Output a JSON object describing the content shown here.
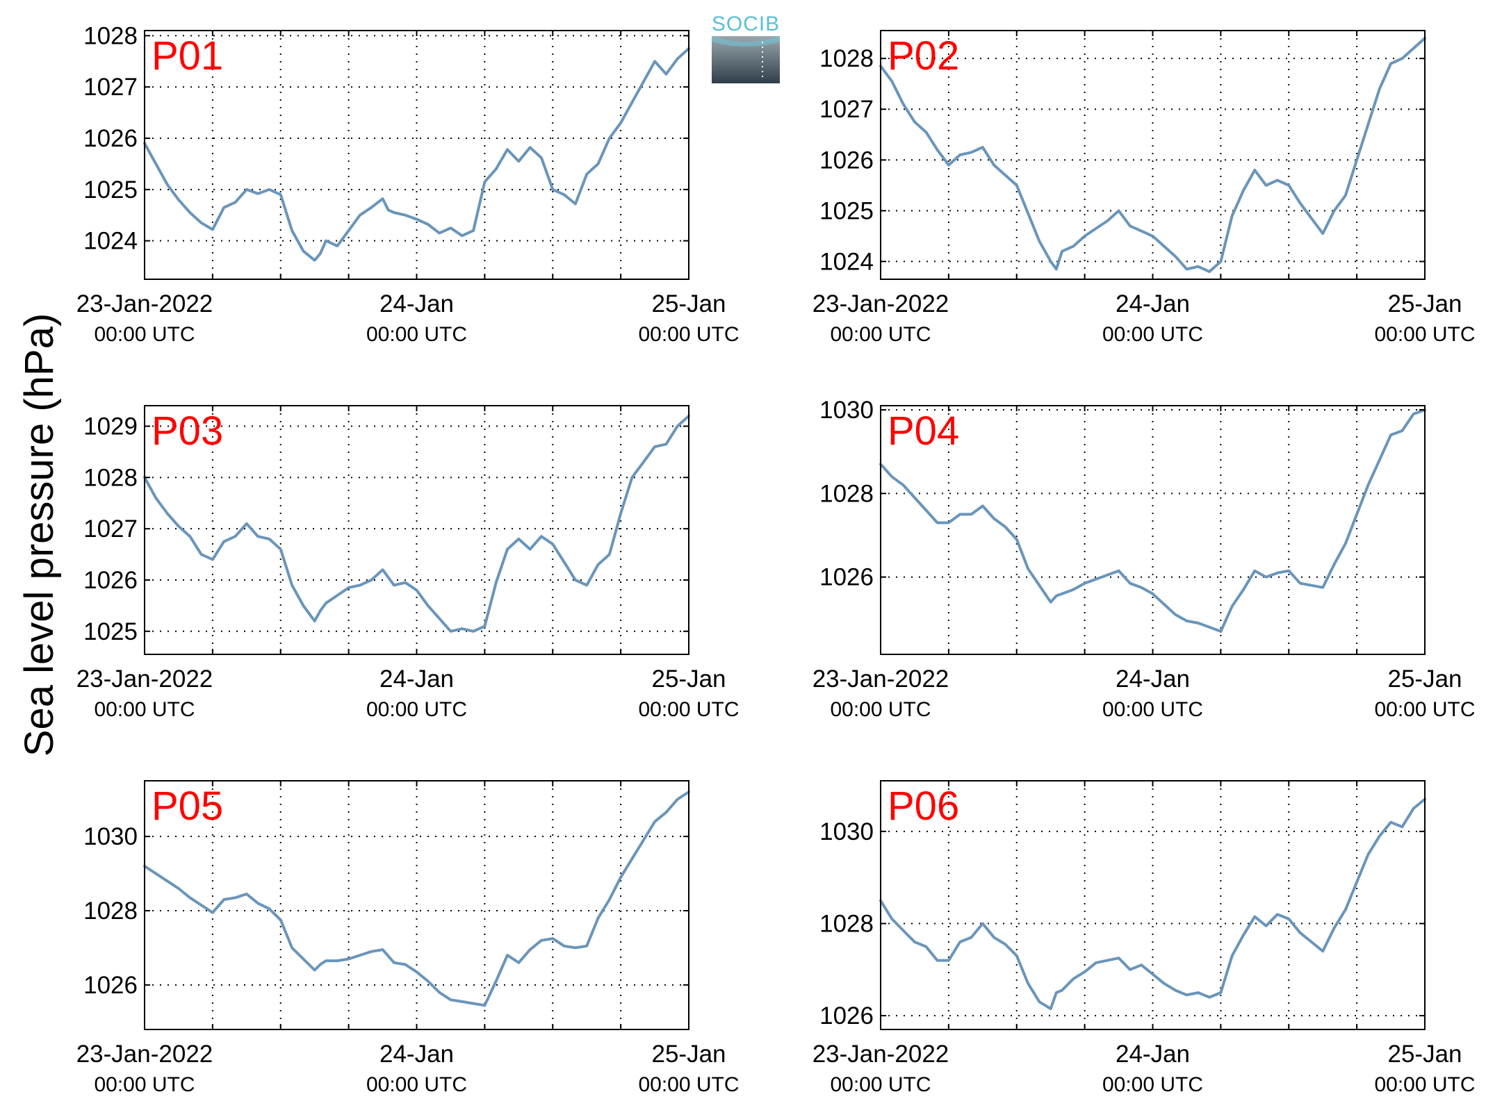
{
  "figure": {
    "ylabel": "Sea level pressure (hPa)",
    "logo_text": "SOCIB"
  },
  "colors": {
    "line": "#6a95ba",
    "panel_label": "#ff0000",
    "grid": "#000000",
    "logo_text": "#5bbfd3",
    "logo_top": "#9aa7ad",
    "logo_bottom": "#2f3e49"
  },
  "chart_data": [
    {
      "type": "line",
      "panel": "P01",
      "xlim": [
        0,
        48
      ],
      "ylim": [
        1023.25,
        1028.1
      ],
      "yticks": [
        1024,
        1025,
        1026,
        1027,
        1028
      ],
      "ytick_labels": [
        "1024",
        "1025",
        "1026",
        "1027",
        "1028"
      ],
      "xticks": [
        0,
        24,
        48
      ],
      "xtick_labels": [
        [
          "23-Jan-2022",
          "00:00 UTC"
        ],
        [
          "24-Jan",
          "00:00 UTC"
        ],
        [
          "25-Jan",
          "00:00 UTC"
        ]
      ],
      "grid": true,
      "series": [
        {
          "x": [
            0,
            1,
            2,
            3,
            4,
            5,
            6,
            7,
            8,
            9,
            10,
            11,
            12,
            13,
            14,
            15,
            15.5,
            16,
            17,
            18,
            19,
            20,
            21,
            21.5,
            22,
            23,
            24,
            25,
            26,
            27,
            28,
            29,
            30,
            31,
            32,
            33,
            34,
            35,
            36,
            37,
            38,
            39,
            40,
            41,
            42,
            43,
            44,
            45,
            46,
            47,
            48
          ],
          "y": [
            1025.9,
            1025.5,
            1025.1,
            1024.8,
            1024.55,
            1024.35,
            1024.22,
            1024.65,
            1024.75,
            1025.0,
            1024.92,
            1025.0,
            1024.9,
            1024.2,
            1023.8,
            1023.62,
            1023.75,
            1024.0,
            1023.9,
            1024.2,
            1024.5,
            1024.65,
            1024.82,
            1024.6,
            1024.55,
            1024.5,
            1024.42,
            1024.32,
            1024.15,
            1024.25,
            1024.1,
            1024.2,
            1025.15,
            1025.4,
            1025.78,
            1025.55,
            1025.82,
            1025.62,
            1025.0,
            1024.9,
            1024.72,
            1025.3,
            1025.5,
            1026.0,
            1026.3,
            1026.7,
            1027.1,
            1027.5,
            1027.25,
            1027.55,
            1027.75
          ]
        }
      ]
    },
    {
      "type": "line",
      "panel": "P02",
      "xlim": [
        0,
        48
      ],
      "ylim": [
        1023.65,
        1028.55
      ],
      "yticks": [
        1024,
        1025,
        1026,
        1027,
        1028
      ],
      "ytick_labels": [
        "1024",
        "1025",
        "1026",
        "1027",
        "1028"
      ],
      "xticks": [
        0,
        24,
        48
      ],
      "xtick_labels": [
        [
          "23-Jan-2022",
          "00:00 UTC"
        ],
        [
          "24-Jan",
          "00:00 UTC"
        ],
        [
          "25-Jan",
          "00:00 UTC"
        ]
      ],
      "grid": true,
      "series": [
        {
          "x": [
            0,
            1,
            2,
            3,
            4,
            5,
            6,
            7,
            8,
            9,
            10,
            11,
            12,
            13,
            14,
            15,
            15.5,
            16,
            17,
            18,
            19,
            20,
            21,
            22,
            23,
            24,
            25,
            26,
            27,
            28,
            29,
            30,
            31,
            32,
            33,
            34,
            35,
            36,
            37,
            38,
            39,
            40,
            41,
            42,
            43,
            44,
            45,
            46,
            47,
            48
          ],
          "y": [
            1027.85,
            1027.55,
            1027.1,
            1026.75,
            1026.55,
            1026.2,
            1025.9,
            1026.1,
            1026.15,
            1026.25,
            1025.9,
            1025.7,
            1025.5,
            1024.95,
            1024.4,
            1024.0,
            1023.85,
            1024.2,
            1024.3,
            1024.5,
            1024.65,
            1024.8,
            1025.0,
            1024.7,
            1024.6,
            1024.5,
            1024.3,
            1024.1,
            1023.85,
            1023.9,
            1023.8,
            1024.0,
            1024.9,
            1025.4,
            1025.8,
            1025.5,
            1025.6,
            1025.5,
            1025.15,
            1024.85,
            1024.55,
            1025.0,
            1025.3,
            1026.0,
            1026.7,
            1027.4,
            1027.9,
            1028.0,
            1028.2,
            1028.4
          ]
        }
      ]
    },
    {
      "type": "line",
      "panel": "P03",
      "xlim": [
        0,
        48
      ],
      "ylim": [
        1024.55,
        1029.4
      ],
      "yticks": [
        1025,
        1026,
        1027,
        1028,
        1029
      ],
      "ytick_labels": [
        "1025",
        "1026",
        "1027",
        "1028",
        "1029"
      ],
      "xticks": [
        0,
        24,
        48
      ],
      "xtick_labels": [
        [
          "23-Jan-2022",
          "00:00 UTC"
        ],
        [
          "24-Jan",
          "00:00 UTC"
        ],
        [
          "25-Jan",
          "00:00 UTC"
        ]
      ],
      "grid": true,
      "series": [
        {
          "x": [
            0,
            1,
            2,
            3,
            4,
            5,
            6,
            7,
            8,
            9,
            10,
            11,
            12,
            13,
            14,
            15,
            15.5,
            16,
            17,
            18,
            19,
            20,
            21,
            22,
            23,
            24,
            25,
            26,
            27,
            28,
            29,
            30,
            31,
            32,
            33,
            34,
            35,
            36,
            37,
            38,
            39,
            40,
            41,
            42,
            43,
            44,
            45,
            46,
            47,
            48
          ],
          "y": [
            1028.0,
            1027.6,
            1027.3,
            1027.05,
            1026.85,
            1026.5,
            1026.4,
            1026.75,
            1026.85,
            1027.1,
            1026.85,
            1026.8,
            1026.6,
            1025.9,
            1025.5,
            1025.2,
            1025.4,
            1025.55,
            1025.7,
            1025.85,
            1025.9,
            1026.0,
            1026.2,
            1025.9,
            1025.95,
            1025.8,
            1025.5,
            1025.25,
            1025.0,
            1025.05,
            1025.0,
            1025.1,
            1025.95,
            1026.6,
            1026.8,
            1026.6,
            1026.85,
            1026.7,
            1026.35,
            1026.0,
            1025.9,
            1026.3,
            1026.5,
            1027.3,
            1028.0,
            1028.3,
            1028.6,
            1028.65,
            1029.0,
            1029.2
          ]
        }
      ]
    },
    {
      "type": "line",
      "panel": "P04",
      "xlim": [
        0,
        48
      ],
      "ylim": [
        1024.15,
        1030.1
      ],
      "yticks": [
        1026,
        1028,
        1030
      ],
      "ytick_labels": [
        "1026",
        "1028",
        "1030"
      ],
      "xticks": [
        0,
        24,
        48
      ],
      "xtick_labels": [
        [
          "23-Jan-2022",
          "00:00 UTC"
        ],
        [
          "24-Jan",
          "00:00 UTC"
        ],
        [
          "25-Jan",
          "00:00 UTC"
        ]
      ],
      "grid": true,
      "series": [
        {
          "x": [
            0,
            1,
            2,
            3,
            4,
            5,
            6,
            7,
            8,
            9,
            10,
            11,
            12,
            13,
            14,
            15,
            15.5,
            16,
            17,
            18,
            19,
            20,
            21,
            22,
            23,
            24,
            25,
            26,
            27,
            28,
            29,
            30,
            31,
            32,
            33,
            34,
            35,
            36,
            37,
            38,
            39,
            40,
            41,
            42,
            43,
            44,
            45,
            46,
            47,
            48
          ],
          "y": [
            1028.7,
            1028.4,
            1028.2,
            1027.9,
            1027.6,
            1027.3,
            1027.3,
            1027.5,
            1027.5,
            1027.7,
            1027.4,
            1027.2,
            1026.9,
            1026.2,
            1025.8,
            1025.4,
            1025.55,
            1025.6,
            1025.7,
            1025.85,
            1025.95,
            1026.05,
            1026.15,
            1025.85,
            1025.75,
            1025.6,
            1025.35,
            1025.1,
            1024.95,
            1024.9,
            1024.8,
            1024.7,
            1025.3,
            1025.7,
            1026.15,
            1026.0,
            1026.1,
            1026.15,
            1025.85,
            1025.8,
            1025.75,
            1026.3,
            1026.8,
            1027.5,
            1028.2,
            1028.8,
            1029.4,
            1029.5,
            1029.9,
            1030.0
          ]
        }
      ]
    },
    {
      "type": "line",
      "panel": "P05",
      "xlim": [
        0,
        48
      ],
      "ylim": [
        1024.8,
        1031.5
      ],
      "yticks": [
        1026,
        1028,
        1030
      ],
      "ytick_labels": [
        "1026",
        "1028",
        "1030"
      ],
      "xticks": [
        0,
        24,
        48
      ],
      "xtick_labels": [
        [
          "23-Jan-2022",
          "00:00 UTC"
        ],
        [
          "24-Jan",
          "00:00 UTC"
        ],
        [
          "25-Jan",
          "00:00 UTC"
        ]
      ],
      "grid": true,
      "series": [
        {
          "x": [
            0,
            1,
            2,
            3,
            4,
            5,
            6,
            7,
            8,
            9,
            10,
            11,
            12,
            13,
            14,
            15,
            15.5,
            16,
            17,
            18,
            19,
            20,
            21,
            22,
            23,
            24,
            25,
            26,
            27,
            28,
            29,
            30,
            31,
            32,
            33,
            34,
            35,
            36,
            37,
            38,
            39,
            40,
            41,
            42,
            43,
            44,
            45,
            46,
            47,
            48
          ],
          "y": [
            1029.2,
            1029.0,
            1028.8,
            1028.6,
            1028.35,
            1028.15,
            1027.95,
            1028.3,
            1028.35,
            1028.45,
            1028.2,
            1028.05,
            1027.75,
            1027.0,
            1026.7,
            1026.4,
            1026.55,
            1026.65,
            1026.65,
            1026.7,
            1026.8,
            1026.9,
            1026.95,
            1026.6,
            1026.55,
            1026.35,
            1026.1,
            1025.8,
            1025.6,
            1025.55,
            1025.5,
            1025.45,
            1026.1,
            1026.8,
            1026.6,
            1026.95,
            1027.2,
            1027.25,
            1027.05,
            1027.0,
            1027.05,
            1027.8,
            1028.3,
            1028.9,
            1029.4,
            1029.9,
            1030.4,
            1030.65,
            1031.0,
            1031.2
          ]
        }
      ]
    },
    {
      "type": "line",
      "panel": "P06",
      "xlim": [
        0,
        48
      ],
      "ylim": [
        1025.7,
        1031.1
      ],
      "yticks": [
        1026,
        1028,
        1030
      ],
      "ytick_labels": [
        "1026",
        "1028",
        "1030"
      ],
      "xticks": [
        0,
        24,
        48
      ],
      "xtick_labels": [
        [
          "23-Jan-2022",
          "00:00 UTC"
        ],
        [
          "24-Jan",
          "00:00 UTC"
        ],
        [
          "25-Jan",
          "00:00 UTC"
        ]
      ],
      "grid": true,
      "series": [
        {
          "x": [
            0,
            1,
            2,
            3,
            4,
            5,
            6,
            7,
            8,
            9,
            10,
            11,
            12,
            13,
            14,
            15,
            15.5,
            16,
            17,
            18,
            19,
            20,
            21,
            22,
            23,
            24,
            25,
            26,
            27,
            28,
            29,
            30,
            31,
            32,
            33,
            34,
            35,
            36,
            37,
            38,
            39,
            40,
            41,
            42,
            43,
            44,
            45,
            46,
            47,
            48
          ],
          "y": [
            1028.5,
            1028.1,
            1027.85,
            1027.6,
            1027.5,
            1027.2,
            1027.2,
            1027.6,
            1027.7,
            1028.0,
            1027.7,
            1027.55,
            1027.3,
            1026.7,
            1026.3,
            1026.15,
            1026.5,
            1026.55,
            1026.8,
            1026.95,
            1027.15,
            1027.2,
            1027.25,
            1027.0,
            1027.1,
            1026.9,
            1026.7,
            1026.55,
            1026.45,
            1026.5,
            1026.4,
            1026.5,
            1027.3,
            1027.75,
            1028.15,
            1027.95,
            1028.2,
            1028.1,
            1027.8,
            1027.6,
            1027.4,
            1027.9,
            1028.3,
            1028.9,
            1029.5,
            1029.9,
            1030.2,
            1030.1,
            1030.5,
            1030.7
          ]
        }
      ]
    }
  ]
}
